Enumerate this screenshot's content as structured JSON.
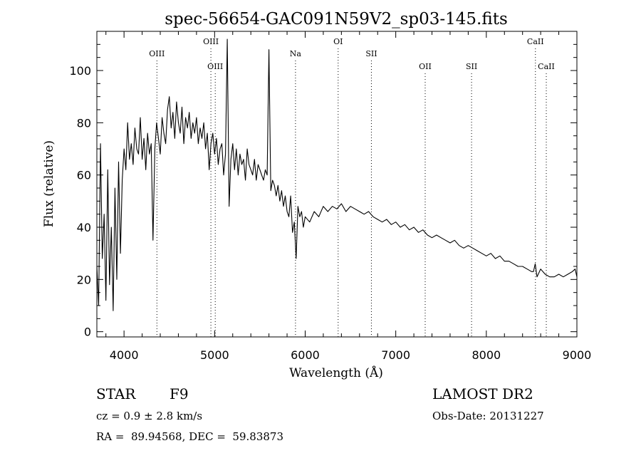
{
  "chart_data": {
    "type": "line",
    "title": "spec-56654-GAC091N59V2_sp03-145.fits",
    "xlabel": "Wavelength (Å)",
    "ylabel": "Flux (relative)",
    "xlim": [
      3700,
      9000
    ],
    "ylim": [
      -2,
      115
    ],
    "x_ticks": [
      4000,
      5000,
      6000,
      7000,
      8000,
      9000
    ],
    "y_ticks": [
      0,
      20,
      40,
      60,
      80,
      100
    ],
    "x_tick_labels": [
      "4000",
      "5000",
      "6000",
      "7000",
      "8000",
      "9000"
    ],
    "y_tick_labels": [
      "0",
      "20",
      "40",
      "60",
      "80",
      "100"
    ],
    "grid": false,
    "series": [
      {
        "color": "#000000",
        "x": [
          3700,
          3720,
          3740,
          3760,
          3780,
          3800,
          3820,
          3840,
          3860,
          3880,
          3900,
          3920,
          3940,
          3960,
          3980,
          4000,
          4020,
          4040,
          4060,
          4080,
          4100,
          4120,
          4140,
          4160,
          4180,
          4200,
          4220,
          4240,
          4260,
          4280,
          4300,
          4320,
          4340,
          4360,
          4380,
          4400,
          4420,
          4440,
          4460,
          4480,
          4500,
          4520,
          4540,
          4560,
          4580,
          4600,
          4620,
          4640,
          4660,
          4680,
          4700,
          4720,
          4740,
          4760,
          4780,
          4800,
          4820,
          4840,
          4860,
          4880,
          4900,
          4920,
          4940,
          4960,
          4980,
          5000,
          5020,
          5040,
          5060,
          5080,
          5100,
          5120,
          5140,
          5160,
          5180,
          5200,
          5220,
          5240,
          5260,
          5280,
          5300,
          5320,
          5340,
          5360,
          5380,
          5400,
          5420,
          5440,
          5460,
          5480,
          5500,
          5520,
          5540,
          5560,
          5580,
          5600,
          5620,
          5640,
          5660,
          5680,
          5700,
          5720,
          5740,
          5760,
          5780,
          5800,
          5820,
          5840,
          5860,
          5880,
          5900,
          5920,
          5940,
          5960,
          5980,
          6000,
          6050,
          6100,
          6150,
          6200,
          6250,
          6300,
          6350,
          6400,
          6450,
          6500,
          6550,
          6600,
          6650,
          6700,
          6750,
          6800,
          6850,
          6900,
          6950,
          7000,
          7050,
          7100,
          7150,
          7200,
          7250,
          7300,
          7350,
          7400,
          7450,
          7500,
          7550,
          7600,
          7650,
          7700,
          7750,
          7800,
          7850,
          7900,
          7950,
          8000,
          8050,
          8100,
          8150,
          8200,
          8250,
          8300,
          8350,
          8400,
          8450,
          8500,
          8520,
          8540,
          8560,
          8600,
          8650,
          8700,
          8750,
          8800,
          8850,
          8900,
          8950,
          8980,
          9000
        ],
        "y": [
          25,
          10,
          72,
          28,
          45,
          12,
          62,
          18,
          40,
          8,
          55,
          20,
          65,
          30,
          58,
          70,
          62,
          80,
          66,
          72,
          64,
          78,
          70,
          68,
          82,
          66,
          74,
          62,
          76,
          68,
          72,
          35,
          70,
          80,
          74,
          68,
          82,
          76,
          72,
          85,
          90,
          78,
          84,
          74,
          88,
          80,
          76,
          86,
          72,
          82,
          78,
          84,
          74,
          80,
          76,
          82,
          72,
          78,
          74,
          80,
          70,
          76,
          62,
          72,
          76,
          68,
          74,
          64,
          70,
          72,
          60,
          68,
          112,
          48,
          66,
          72,
          62,
          70,
          60,
          68,
          64,
          66,
          58,
          70,
          64,
          62,
          60,
          66,
          58,
          64,
          62,
          60,
          58,
          62,
          60,
          108,
          54,
          58,
          56,
          52,
          56,
          50,
          54,
          48,
          52,
          46,
          44,
          52,
          38,
          42,
          28,
          48,
          44,
          46,
          40,
          44,
          42,
          46,
          44,
          48,
          46,
          48,
          47,
          49,
          46,
          48,
          47,
          46,
          45,
          46,
          44,
          43,
          42,
          43,
          41,
          42,
          40,
          41,
          39,
          40,
          38,
          39,
          37,
          36,
          37,
          36,
          35,
          34,
          35,
          33,
          32,
          33,
          32,
          31,
          30,
          29,
          30,
          28,
          29,
          27,
          27,
          26,
          25,
          25,
          24,
          23,
          23,
          26,
          21,
          24,
          22,
          21,
          21,
          22,
          21,
          22,
          23,
          24,
          21
        ]
      }
    ],
    "line_markers": [
      {
        "label": "OIII",
        "x": 4363,
        "row": "low"
      },
      {
        "label": "OIII",
        "x": 4959,
        "row": "high"
      },
      {
        "label": "OIII",
        "x": 5007,
        "row": "mid"
      },
      {
        "label": "Na",
        "x": 5893,
        "row": "low"
      },
      {
        "label": "OI",
        "x": 6364,
        "row": "high"
      },
      {
        "label": "SII",
        "x": 6731,
        "row": "low"
      },
      {
        "label": "OII",
        "x": 7325,
        "row": "mid"
      },
      {
        "label": "SII",
        "x": 7837,
        "row": "mid"
      },
      {
        "label": "CaII",
        "x": 8542,
        "row": "high"
      },
      {
        "label": "CaII",
        "x": 8662,
        "row": "mid"
      }
    ]
  },
  "info": {
    "object_class": "STAR",
    "subclass": "F9",
    "survey": "LAMOST DR2",
    "cz": "cz = 0.9 ± 2.8 km/s",
    "obs_date": "Obs-Date: 20131227",
    "coords": "RA =  89.94568, DEC =  59.83873"
  }
}
